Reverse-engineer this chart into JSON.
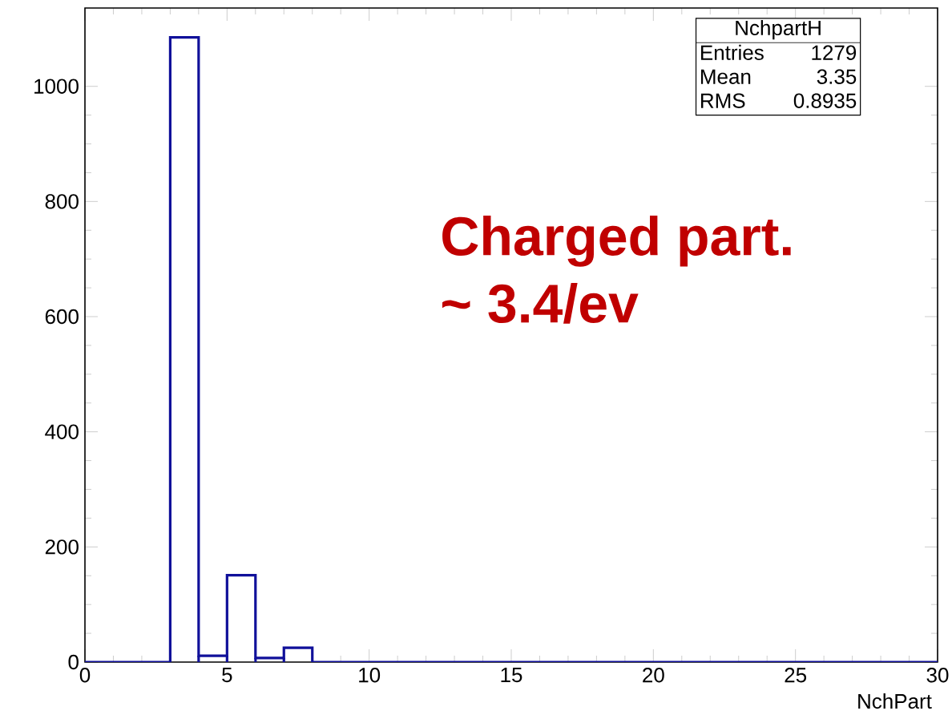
{
  "chart_data": {
    "type": "histogram",
    "xlabel": "NchPart",
    "bins": [
      0,
      1,
      2,
      3,
      4,
      5,
      6,
      7,
      8,
      9,
      10,
      11,
      12,
      13,
      14,
      15,
      16,
      17,
      18,
      19,
      20,
      21,
      22,
      23,
      24,
      25,
      26,
      27,
      28,
      29,
      30
    ],
    "values": [
      0,
      0,
      0,
      1085,
      11,
      151,
      7,
      25,
      0,
      0,
      0,
      0,
      0,
      0,
      0,
      0,
      0,
      0,
      0,
      0,
      0,
      0,
      0,
      0,
      0,
      0,
      0,
      0,
      0,
      0
    ],
    "color": "#10109a",
    "xlim": [
      0,
      30
    ],
    "xticks": [
      0,
      5,
      10,
      15,
      20,
      25,
      30
    ],
    "ylim": [
      0,
      1136
    ],
    "yticks": [
      0,
      200,
      400,
      600,
      800,
      1000
    ],
    "annotations": [
      "NchpartH",
      "Entries",
      "1279",
      "Mean",
      "3.35",
      "RMS",
      "0.8935",
      "Charged part.",
      "~ 3.4/ev"
    ]
  }
}
